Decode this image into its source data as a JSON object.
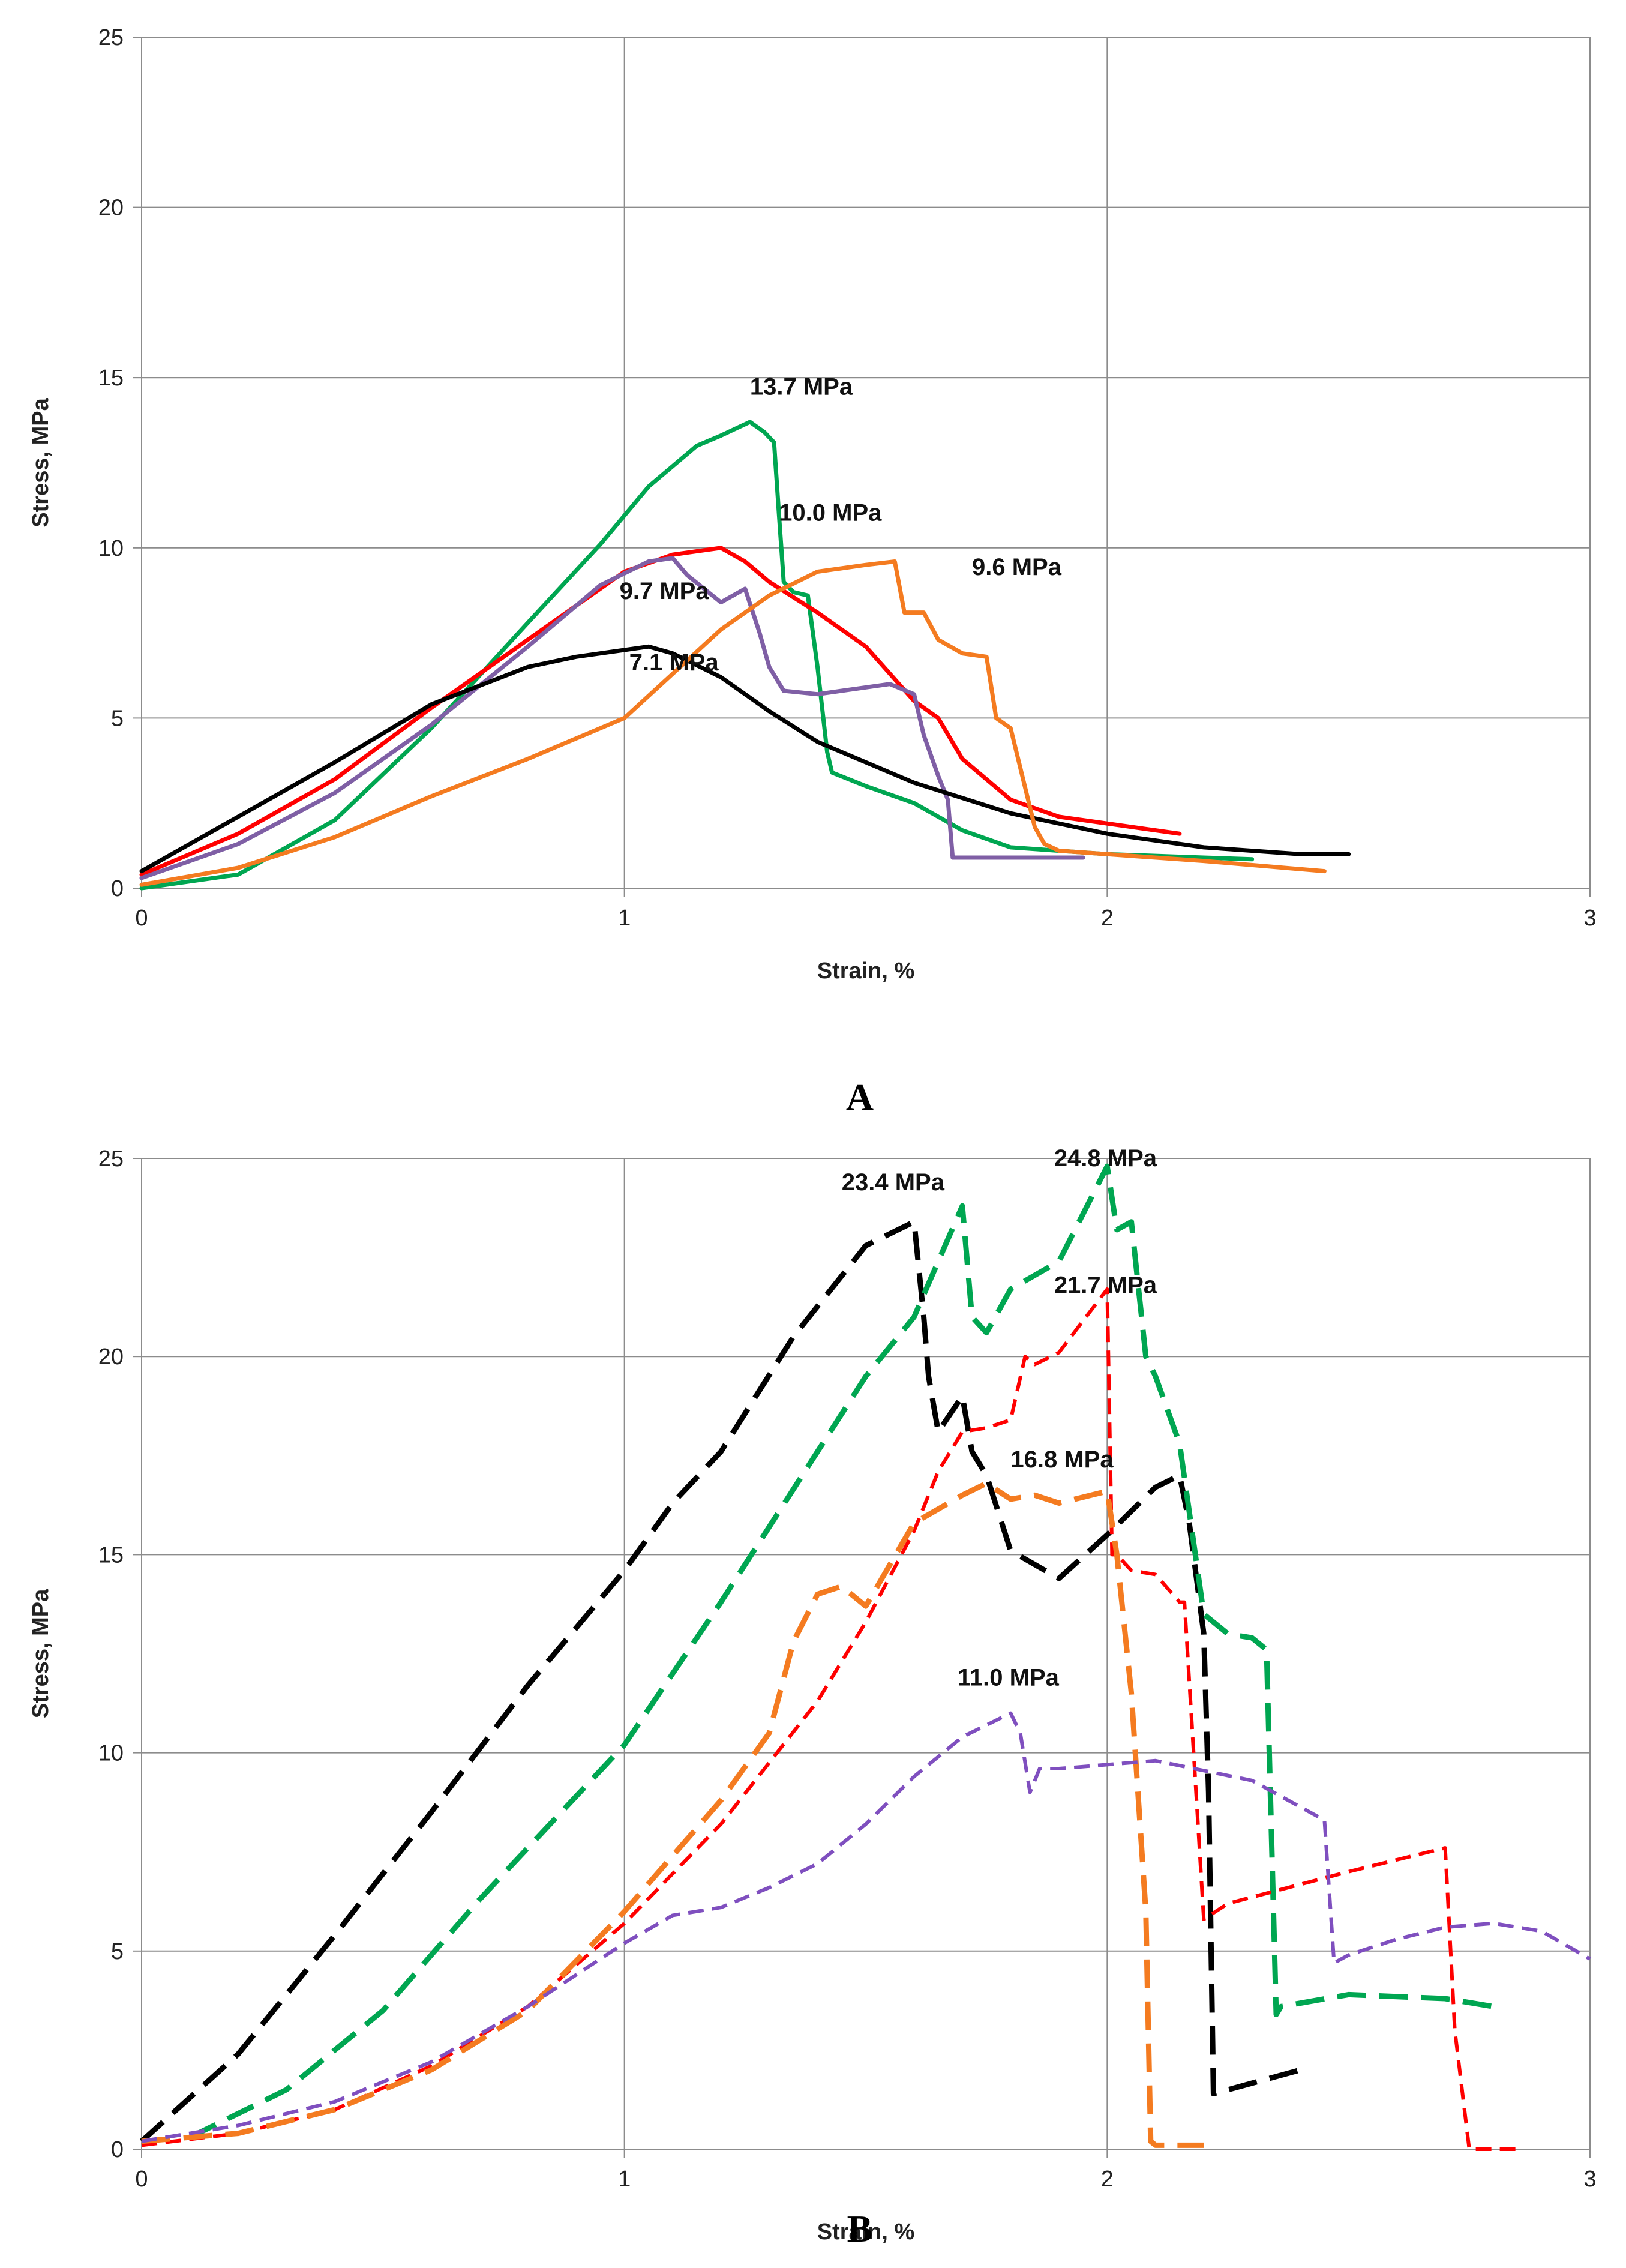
{
  "chart_data": [
    {
      "type": "line",
      "panel_label": "A",
      "xlabel": "Strain, %",
      "ylabel": "Stress, MPa",
      "xlim": [
        0,
        3
      ],
      "ylim": [
        0,
        25
      ],
      "xticks": [
        "0",
        "1",
        "2",
        "3"
      ],
      "yticks": [
        "0",
        "5",
        "10",
        "15",
        "20",
        "25"
      ],
      "grid": true,
      "series": [
        {
          "color": "#00a651",
          "dash": "solid",
          "x": [
            0,
            0.2,
            0.4,
            0.6,
            0.8,
            0.95,
            1.05,
            1.15,
            1.2,
            1.26,
            1.29,
            1.31,
            1.32,
            1.33,
            1.35,
            1.38,
            1.4,
            1.42,
            1.43,
            1.5,
            1.6,
            1.7,
            1.8,
            2.0,
            2.2,
            2.3
          ],
          "y": [
            0,
            0.4,
            2,
            4.7,
            7.8,
            10.1,
            11.8,
            13.0,
            13.3,
            13.7,
            13.4,
            13.1,
            11,
            9.0,
            8.7,
            8.6,
            6.5,
            4.0,
            3.4,
            3.0,
            2.5,
            1.7,
            1.2,
            1.0,
            0.9,
            0.85
          ]
        },
        {
          "color": "#ff0000",
          "dash": "solid",
          "x": [
            0,
            0.2,
            0.4,
            0.6,
            0.8,
            1.0,
            1.1,
            1.2,
            1.25,
            1.3,
            1.4,
            1.5,
            1.6,
            1.65,
            1.7,
            1.8,
            1.9,
            2.0,
            2.15
          ],
          "y": [
            0.4,
            1.6,
            3.2,
            5.3,
            7.3,
            9.3,
            9.8,
            10.0,
            9.6,
            9.0,
            8.1,
            7.1,
            5.5,
            5.0,
            3.8,
            2.6,
            2.1,
            1.9,
            1.6
          ]
        },
        {
          "color": "#7f5fa5",
          "dash": "solid",
          "x": [
            0,
            0.2,
            0.4,
            0.6,
            0.8,
            0.95,
            1.05,
            1.1,
            1.13,
            1.2,
            1.25,
            1.28,
            1.3,
            1.33,
            1.4,
            1.55,
            1.6,
            1.62,
            1.65,
            1.67,
            1.68,
            1.75,
            1.95
          ],
          "y": [
            0.3,
            1.3,
            2.8,
            4.8,
            7.1,
            8.9,
            9.6,
            9.7,
            9.2,
            8.4,
            8.8,
            7.5,
            6.5,
            5.8,
            5.7,
            6.0,
            5.7,
            4.5,
            3.3,
            2.6,
            0.9,
            0.9,
            0.9
          ]
        },
        {
          "color": "#000000",
          "dash": "solid",
          "x": [
            0,
            0.2,
            0.4,
            0.6,
            0.8,
            0.9,
            1.0,
            1.05,
            1.1,
            1.2,
            1.3,
            1.4,
            1.6,
            1.8,
            2.0,
            2.2,
            2.4,
            2.5
          ],
          "y": [
            0.5,
            2.1,
            3.7,
            5.4,
            6.5,
            6.8,
            7.0,
            7.1,
            6.9,
            6.2,
            5.2,
            4.3,
            3.1,
            2.2,
            1.6,
            1.2,
            1.0,
            1.0
          ]
        },
        {
          "color": "#f47b20",
          "dash": "solid",
          "x": [
            0,
            0.2,
            0.4,
            0.6,
            0.8,
            1.0,
            1.1,
            1.2,
            1.3,
            1.4,
            1.5,
            1.56,
            1.58,
            1.62,
            1.65,
            1.7,
            1.75,
            1.77,
            1.8,
            1.85,
            1.87,
            1.9,
            2.0,
            2.2,
            2.45
          ],
          "y": [
            0.1,
            0.6,
            1.5,
            2.7,
            3.8,
            5.0,
            6.3,
            7.6,
            8.6,
            9.3,
            9.5,
            9.6,
            8.1,
            8.1,
            7.3,
            6.9,
            6.8,
            5.0,
            4.7,
            1.8,
            1.3,
            1.1,
            1.0,
            0.8,
            0.5
          ]
        }
      ],
      "annotations": [
        {
          "text": "13.7 MPa",
          "x": 1.26,
          "y": 14.5
        },
        {
          "text": "10.0 MPa",
          "x": 1.32,
          "y": 10.8
        },
        {
          "text": "9.6 MPa",
          "x": 1.72,
          "y": 9.2
        },
        {
          "text": "9.7 MPa",
          "x": 0.99,
          "y": 8.5
        },
        {
          "text": "7.1 MPa",
          "x": 1.01,
          "y": 6.4
        }
      ]
    },
    {
      "type": "line",
      "panel_label": "B",
      "xlabel": "Strain, %",
      "ylabel": "Stress, MPa",
      "xlim": [
        0,
        3
      ],
      "ylim": [
        0,
        25
      ],
      "xticks": [
        "0",
        "1",
        "2",
        "3"
      ],
      "yticks": [
        "0",
        "5",
        "10",
        "15",
        "20",
        "25"
      ],
      "grid": true,
      "series": [
        {
          "color": "#000000",
          "dash": "long-dash",
          "x": [
            0,
            0.2,
            0.4,
            0.6,
            0.8,
            1.0,
            1.1,
            1.2,
            1.35,
            1.5,
            1.6,
            1.62,
            1.63,
            1.65,
            1.7,
            1.72,
            1.75,
            1.8,
            1.9,
            2.0,
            2.1,
            2.15,
            2.17,
            2.2,
            2.21,
            2.22,
            2.4
          ],
          "y": [
            0.2,
            2.4,
            5.4,
            8.5,
            11.7,
            14.6,
            16.3,
            17.6,
            20.5,
            22.8,
            23.4,
            21.0,
            19.5,
            18.1,
            19.0,
            17.6,
            17.0,
            15.1,
            14.4,
            15.5,
            16.7,
            17.0,
            15.8,
            13.0,
            9.0,
            1.4,
            2.0
          ]
        },
        {
          "color": "#00a651",
          "dash": "long-dash",
          "x": [
            0.1,
            0.3,
            0.5,
            0.7,
            0.9,
            1.0,
            1.2,
            1.4,
            1.5,
            1.6,
            1.7,
            1.72,
            1.75,
            1.8,
            1.9,
            2.0,
            2.02,
            2.05,
            2.08,
            2.1,
            2.15,
            2.2,
            2.25,
            2.3,
            2.33,
            2.35,
            2.36,
            2.5,
            2.7,
            2.8
          ],
          "y": [
            0.3,
            1.5,
            3.5,
            6.3,
            8.9,
            10.2,
            13.8,
            17.6,
            19.5,
            21.0,
            23.8,
            21.0,
            20.6,
            21.7,
            22.4,
            24.8,
            23.2,
            23.4,
            20.0,
            19.5,
            17.8,
            13.5,
            13.0,
            12.9,
            12.6,
            3.4,
            3.6,
            3.9,
            3.8,
            3.6
          ]
        },
        {
          "color": "#ff0000",
          "dash": "short-dash",
          "x": [
            0,
            0.2,
            0.4,
            0.6,
            0.8,
            1.0,
            1.2,
            1.4,
            1.5,
            1.6,
            1.65,
            1.7,
            1.75,
            1.8,
            1.83,
            1.85,
            1.9,
            2.0,
            2.01,
            2.02,
            2.05,
            2.1,
            2.15,
            2.16,
            2.2,
            2.25,
            2.5,
            2.7,
            2.72,
            2.75,
            2.85
          ],
          "y": [
            0.1,
            0.4,
            1.0,
            2.1,
            3.6,
            5.7,
            8.2,
            11.3,
            13.3,
            15.6,
            17.1,
            18.1,
            18.2,
            18.4,
            20.0,
            19.8,
            20.1,
            21.7,
            15.0,
            15.0,
            14.6,
            14.5,
            13.8,
            13.8,
            5.8,
            6.2,
            7.0,
            7.6,
            3.0,
            0.0,
            0.0
          ]
        },
        {
          "color": "#f47b20",
          "dash": "long-dash",
          "x": [
            0,
            0.2,
            0.4,
            0.6,
            0.8,
            1.0,
            1.2,
            1.3,
            1.35,
            1.4,
            1.45,
            1.5,
            1.6,
            1.7,
            1.75,
            1.8,
            1.85,
            1.9,
            2.0,
            2.02,
            2.05,
            2.08,
            2.09,
            2.1,
            2.2
          ],
          "y": [
            0.2,
            0.4,
            1.0,
            2.0,
            3.5,
            6.0,
            8.8,
            10.5,
            12.8,
            14.0,
            14.2,
            13.7,
            15.8,
            16.5,
            16.8,
            16.4,
            16.5,
            16.3,
            16.6,
            15.0,
            11.5,
            6.0,
            0.2,
            0.1,
            0.1
          ]
        },
        {
          "color": "#7f4fbf",
          "dash": "short-dash",
          "x": [
            0,
            0.2,
            0.4,
            0.6,
            0.8,
            1.0,
            1.1,
            1.2,
            1.3,
            1.4,
            1.5,
            1.6,
            1.7,
            1.75,
            1.8,
            1.82,
            1.84,
            1.86,
            1.9,
            2.0,
            2.1,
            2.3,
            2.45,
            2.47,
            2.5,
            2.6,
            2.7,
            2.8,
            2.9,
            3.0
          ],
          "y": [
            0.2,
            0.6,
            1.2,
            2.2,
            3.6,
            5.2,
            5.9,
            6.1,
            6.6,
            7.2,
            8.2,
            9.4,
            10.4,
            10.7,
            11.0,
            10.5,
            9.0,
            9.6,
            9.6,
            9.7,
            9.8,
            9.3,
            8.3,
            4.7,
            4.9,
            5.3,
            5.6,
            5.7,
            5.5,
            4.8
          ]
        }
      ],
      "annotations": [
        {
          "text": "23.4 MPa",
          "x": 1.45,
          "y": 24.2
        },
        {
          "text": "24.8 MPa",
          "x": 1.89,
          "y": 24.8
        },
        {
          "text": "21.7 MPa",
          "x": 1.89,
          "y": 21.6
        },
        {
          "text": "16.8 MPa",
          "x": 1.8,
          "y": 17.2
        },
        {
          "text": "11.0 MPa",
          "x": 1.69,
          "y": 11.7
        }
      ]
    }
  ]
}
